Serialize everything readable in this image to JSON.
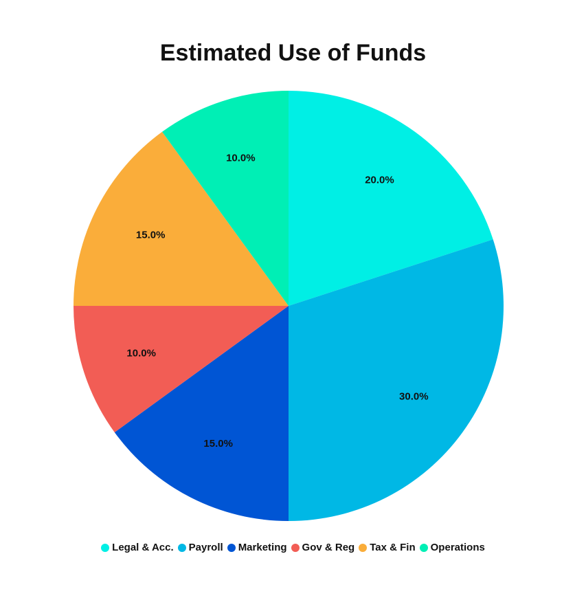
{
  "chart_data": {
    "type": "pie",
    "title": "Estimated Use of Funds",
    "legend_position": "bottom",
    "slices": [
      {
        "name": "Legal & Acc.",
        "value": 20.0,
        "label": "20.0%",
        "color": "#00EFE5"
      },
      {
        "name": "Payroll",
        "value": 30.0,
        "label": "30.0%",
        "color": "#00B8E5"
      },
      {
        "name": "Marketing",
        "value": 15.0,
        "label": "15.0%",
        "color": "#0055D4"
      },
      {
        "name": "Gov & Reg",
        "value": 10.0,
        "label": "10.0%",
        "color": "#F25D55"
      },
      {
        "name": "Tax & Fin",
        "value": 15.0,
        "label": "15.0%",
        "color": "#FAAD3A"
      },
      {
        "name": "Operations",
        "value": 10.0,
        "label": "10.0%",
        "color": "#00EFB5"
      }
    ]
  }
}
